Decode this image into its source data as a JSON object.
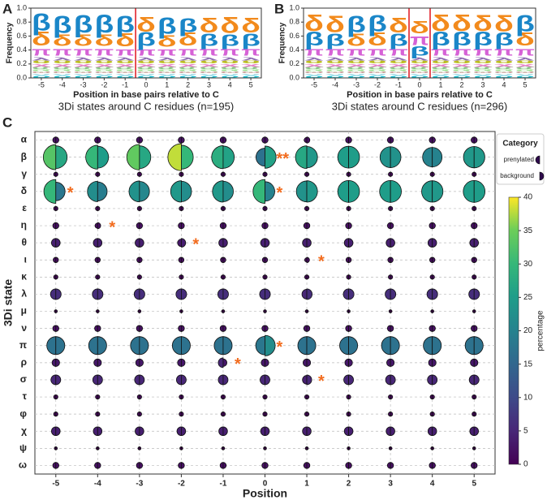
{
  "chart_data": [
    {
      "type": "logo",
      "panel": "A",
      "title": "3Di states around C residues (n=195)",
      "xlabel": "Position in base pairs relative to C",
      "ylabel": "Frequency",
      "x": [
        -5,
        -4,
        -3,
        -2,
        -1,
        0,
        1,
        2,
        3,
        4,
        5
      ],
      "xlim": [
        -5.5,
        5.5
      ],
      "xticks": [
        -5,
        -4,
        -3,
        -2,
        -1,
        0,
        1,
        2,
        3,
        4,
        5
      ],
      "ylim": [
        0,
        1
      ],
      "yticks": [
        {
          "value": 0,
          "label": "0.0"
        },
        {
          "value": 0.2,
          "label": "0.2"
        },
        {
          "value": 0.4,
          "label": "0.4"
        },
        {
          "value": 0.6,
          "label": "0.6"
        },
        {
          "value": 0.8,
          "label": "0.8"
        },
        {
          "value": 1,
          "label": "1.0"
        }
      ],
      "series": [
        {
          "name": "β",
          "color": "#1a86c8",
          "values": [
            0.25,
            0.25,
            0.26,
            0.27,
            0.24,
            0.2,
            0.24,
            0.2,
            0.18,
            0.17,
            0.18
          ]
        },
        {
          "name": "δ",
          "color": "#f28a1c",
          "values": [
            0.2,
            0.17,
            0.17,
            0.17,
            0.19,
            0.22,
            0.17,
            0.19,
            0.22,
            0.23,
            0.22
          ]
        },
        {
          "name": "π",
          "color": "#d662d6",
          "values": [
            0.13,
            0.13,
            0.13,
            0.13,
            0.12,
            0.12,
            0.12,
            0.13,
            0.13,
            0.13,
            0.13
          ]
        },
        {
          "name": "λ",
          "color": "#8c6bb1",
          "values": [
            0.05,
            0.05,
            0.05,
            0.05,
            0.05,
            0.05,
            0.05,
            0.05,
            0.05,
            0.05,
            0.05
          ]
        },
        {
          "name": "σ",
          "color": "#7fbf7b",
          "values": [
            0.04,
            0.04,
            0.04,
            0.04,
            0.04,
            0.04,
            0.04,
            0.04,
            0.04,
            0.04,
            0.04
          ]
        },
        {
          "name": "χ",
          "color": "#e377c2",
          "values": [
            0.04,
            0.04,
            0.04,
            0.04,
            0.04,
            0.04,
            0.04,
            0.04,
            0.04,
            0.04,
            0.04
          ]
        },
        {
          "name": "θ",
          "color": "#bcbd22",
          "values": [
            0.04,
            0.04,
            0.04,
            0.04,
            0.04,
            0.04,
            0.04,
            0.04,
            0.04,
            0.04,
            0.04
          ]
        },
        {
          "name": "ρ",
          "color": "#17becf",
          "values": [
            0.03,
            0.03,
            0.03,
            0.03,
            0.03,
            0.03,
            0.03,
            0.03,
            0.03,
            0.03,
            0.03
          ]
        },
        {
          "name": "ν",
          "color": "#9edae5",
          "values": [
            0.03,
            0.03,
            0.03,
            0.03,
            0.03,
            0.03,
            0.03,
            0.03,
            0.03,
            0.03,
            0.03
          ]
        },
        {
          "name": "ω",
          "color": "#c49c94",
          "values": [
            0.03,
            0.03,
            0.03,
            0.03,
            0.03,
            0.03,
            0.03,
            0.03,
            0.03,
            0.03,
            0.03
          ]
        },
        {
          "name": "α",
          "color": "#98df8a",
          "values": [
            0.03,
            0.03,
            0.03,
            0.03,
            0.03,
            0.03,
            0.03,
            0.03,
            0.03,
            0.03,
            0.03
          ]
        }
      ]
    },
    {
      "type": "logo",
      "panel": "B",
      "title": "3Di states around C residues (n=296)",
      "xlabel": "Position in base pairs relative to C",
      "ylabel": "Frequency",
      "x": [
        -5,
        -4,
        -3,
        -2,
        -1,
        0,
        1,
        2,
        3,
        4,
        5
      ],
      "xlim": [
        -5.5,
        5.5
      ],
      "xticks": [
        -5,
        -4,
        -3,
        -2,
        -1,
        0,
        1,
        2,
        3,
        4,
        5
      ],
      "ylim": [
        0,
        1
      ],
      "yticks": [
        {
          "value": 0,
          "label": "0.0"
        },
        {
          "value": 0.2,
          "label": "0.2"
        },
        {
          "value": 0.4,
          "label": "0.4"
        },
        {
          "value": 0.6,
          "label": "0.6"
        },
        {
          "value": 0.8,
          "label": "0.8"
        },
        {
          "value": 1,
          "label": "1.0"
        }
      ],
      "series": [
        {
          "name": "β",
          "color": "#1a86c8",
          "values": [
            0.2,
            0.18,
            0.24,
            0.24,
            0.18,
            0.14,
            0.2,
            0.2,
            0.2,
            0.19,
            0.24
          ]
        },
        {
          "name": "δ",
          "color": "#f28a1c",
          "values": [
            0.24,
            0.24,
            0.18,
            0.19,
            0.22,
            0.18,
            0.24,
            0.24,
            0.23,
            0.24,
            0.19
          ]
        },
        {
          "name": "π",
          "color": "#d662d6",
          "values": [
            0.13,
            0.13,
            0.13,
            0.13,
            0.13,
            0.17,
            0.13,
            0.13,
            0.13,
            0.13,
            0.13
          ]
        },
        {
          "name": "λ",
          "color": "#8c6bb1",
          "values": [
            0.05,
            0.05,
            0.05,
            0.05,
            0.05,
            0.05,
            0.05,
            0.05,
            0.05,
            0.05,
            0.05
          ]
        },
        {
          "name": "σ",
          "color": "#7fbf7b",
          "values": [
            0.04,
            0.04,
            0.04,
            0.04,
            0.04,
            0.04,
            0.04,
            0.04,
            0.04,
            0.04,
            0.04
          ]
        },
        {
          "name": "χ",
          "color": "#e377c2",
          "values": [
            0.04,
            0.04,
            0.04,
            0.04,
            0.04,
            0.04,
            0.04,
            0.04,
            0.04,
            0.04,
            0.04
          ]
        },
        {
          "name": "θ",
          "color": "#bcbd22",
          "values": [
            0.04,
            0.04,
            0.04,
            0.04,
            0.04,
            0.04,
            0.04,
            0.04,
            0.04,
            0.04,
            0.04
          ]
        },
        {
          "name": "ρ",
          "color": "#17becf",
          "values": [
            0.03,
            0.03,
            0.03,
            0.03,
            0.03,
            0.03,
            0.03,
            0.03,
            0.03,
            0.03,
            0.03
          ]
        },
        {
          "name": "ν",
          "color": "#9edae5",
          "values": [
            0.03,
            0.03,
            0.03,
            0.03,
            0.03,
            0.03,
            0.03,
            0.03,
            0.03,
            0.03,
            0.03
          ]
        },
        {
          "name": "ω",
          "color": "#c49c94",
          "values": [
            0.03,
            0.03,
            0.03,
            0.03,
            0.03,
            0.03,
            0.03,
            0.03,
            0.03,
            0.03,
            0.03
          ]
        },
        {
          "name": "α",
          "color": "#98df8a",
          "values": [
            0.03,
            0.03,
            0.03,
            0.03,
            0.03,
            0.03,
            0.03,
            0.03,
            0.03,
            0.03,
            0.03
          ]
        }
      ]
    },
    {
      "type": "split-dot",
      "panel": "C",
      "xlabel": "Position",
      "ylabel": "3Di state",
      "x": [
        -5,
        -4,
        -3,
        -2,
        -1,
        0,
        1,
        2,
        3,
        4,
        5
      ],
      "xlim": [
        -5.5,
        5.5
      ],
      "xticks": [
        -5,
        -4,
        -3,
        -2,
        -1,
        0,
        1,
        2,
        3,
        4,
        5
      ],
      "categories": [
        "α",
        "β",
        "γ",
        "δ",
        "ε",
        "η",
        "θ",
        "ι",
        "κ",
        "λ",
        "μ",
        "ν",
        "π",
        "ρ",
        "σ",
        "τ",
        "φ",
        "χ",
        "ψ",
        "ω"
      ],
      "grid": true,
      "legend_title": "Category",
      "colormap": "viridis",
      "colorbar_label": "percentage",
      "clim": [
        0,
        40
      ],
      "cticks": [
        0,
        5,
        10,
        15,
        20,
        25,
        30,
        35,
        40
      ],
      "series": [
        {
          "name": "prenylated",
          "values": [
            [
              2,
              2,
              2,
              2,
              2,
              2,
              1.5,
              2,
              2,
              2,
              2
            ],
            [
              33,
              30,
              34,
              38,
              28,
              17,
              27,
              25,
              23,
              20,
              24
            ],
            [
              1,
              1,
              1,
              1,
              1,
              1,
              1,
              1,
              1,
              1,
              1
            ],
            [
              30,
              22,
              23,
              24,
              24,
              30,
              23,
              25,
              25,
              24,
              25
            ],
            [
              1,
              1,
              1,
              1,
              1,
              1,
              1,
              1,
              1,
              1,
              1
            ],
            [
              2,
              1.5,
              2,
              2,
              2,
              2,
              2,
              2,
              2,
              2,
              2
            ],
            [
              4,
              4,
              4,
              3,
              4,
              4,
              4,
              4,
              4,
              4,
              4
            ],
            [
              1.5,
              1.5,
              1.5,
              1.5,
              1.5,
              1.5,
              1,
              1.5,
              1.5,
              1.5,
              1.5
            ],
            [
              1,
              1,
              1,
              1,
              1,
              1,
              1,
              1,
              1,
              1,
              1
            ],
            [
              6,
              6,
              6,
              6,
              6,
              6,
              5,
              6,
              6,
              6,
              6
            ],
            [
              0.5,
              0.5,
              0.5,
              0.5,
              0.5,
              0.5,
              0.5,
              0.5,
              0.5,
              0.5,
              0.5
            ],
            [
              2,
              2,
              2,
              2,
              2,
              2,
              2,
              2,
              2,
              2,
              2
            ],
            [
              17,
              17,
              17,
              17,
              17,
              18,
              17,
              17,
              17,
              17,
              17
            ],
            [
              3,
              3,
              3,
              3,
              5,
              3,
              3,
              3,
              3,
              3,
              3
            ],
            [
              5,
              5,
              5,
              5,
              5,
              5,
              4,
              5,
              5,
              5,
              5
            ],
            [
              1,
              1,
              1,
              1,
              1,
              1,
              1,
              1,
              1,
              1,
              1
            ],
            [
              1,
              1,
              1,
              1,
              1,
              1,
              1,
              1,
              1,
              1,
              1
            ],
            [
              4,
              4,
              4,
              4,
              4,
              4,
              4,
              4,
              4,
              4,
              4
            ],
            [
              0.5,
              0.5,
              0.5,
              0.5,
              0.5,
              0.5,
              0.5,
              0.5,
              0.5,
              0.5,
              0.5
            ],
            [
              2,
              2,
              2,
              2,
              2,
              2,
              2,
              2,
              2,
              2,
              2
            ]
          ]
        },
        {
          "name": "background",
          "values": [
            [
              2,
              2,
              2,
              2,
              2,
              2,
              2,
              2,
              2,
              2,
              2
            ],
            [
              27,
              25,
              27,
              30,
              26,
              26,
              24,
              25,
              23,
              20,
              24
            ],
            [
              1,
              1,
              1,
              1,
              1,
              1,
              1,
              1,
              1,
              1,
              1
            ],
            [
              18,
              19,
              21,
              22,
              22,
              20,
              24,
              25,
              25,
              24,
              25
            ],
            [
              1,
              1,
              1,
              1,
              1,
              1,
              1,
              1,
              1,
              1,
              1
            ],
            [
              2,
              2,
              2,
              2,
              2,
              2,
              2,
              2,
              2,
              2,
              2
            ],
            [
              4,
              4,
              4,
              4,
              4,
              4,
              4,
              4,
              4,
              4,
              4
            ],
            [
              1.5,
              1.5,
              1.5,
              1.5,
              1.5,
              1.5,
              1.5,
              1.5,
              1.5,
              1.5,
              1.5
            ],
            [
              1,
              1,
              1,
              1,
              1,
              1,
              1,
              1,
              1,
              1,
              1
            ],
            [
              6,
              6,
              6,
              6,
              6,
              6,
              6,
              6,
              6,
              6,
              6
            ],
            [
              0.5,
              0.5,
              0.5,
              0.5,
              0.5,
              0.5,
              0.5,
              0.5,
              0.5,
              0.5,
              0.5
            ],
            [
              2,
              2,
              2,
              2,
              2,
              2,
              2,
              2,
              2,
              2,
              2
            ],
            [
              17,
              17,
              17,
              17,
              17,
              22,
              17,
              17,
              17,
              17,
              17
            ],
            [
              3,
              3,
              3,
              3,
              3,
              3,
              3,
              3,
              3,
              3,
              3
            ],
            [
              5,
              5,
              5,
              5,
              5,
              5,
              5,
              5,
              5,
              5,
              5
            ],
            [
              1,
              1,
              1,
              1,
              1,
              1,
              1,
              1,
              1,
              1,
              1
            ],
            [
              1,
              1,
              1,
              1,
              1,
              1,
              1,
              1,
              1,
              1,
              1
            ],
            [
              4,
              4,
              4,
              4,
              4,
              4,
              4,
              4,
              4,
              4,
              4
            ],
            [
              0.5,
              0.5,
              0.5,
              0.5,
              0.5,
              0.5,
              0.5,
              0.5,
              0.5,
              0.5,
              0.5
            ],
            [
              2,
              2,
              2,
              2,
              2,
              2,
              2,
              2,
              2,
              2,
              2
            ]
          ]
        }
      ],
      "annotations": [
        {
          "text": "**",
          "state": "β",
          "position": 0
        },
        {
          "text": "*",
          "state": "δ",
          "position": -5
        },
        {
          "text": "*",
          "state": "δ",
          "position": 0
        },
        {
          "text": "*",
          "state": "η",
          "position": -4
        },
        {
          "text": "*",
          "state": "θ",
          "position": -2
        },
        {
          "text": "*",
          "state": "ι",
          "position": 1
        },
        {
          "text": "*",
          "state": "π",
          "position": 0
        },
        {
          "text": "*",
          "state": "ρ",
          "position": -1
        },
        {
          "text": "*",
          "state": "σ",
          "position": 1
        }
      ]
    }
  ]
}
